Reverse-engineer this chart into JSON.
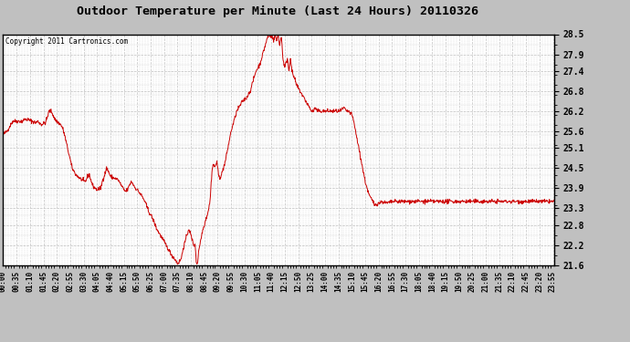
{
  "title": "Outdoor Temperature per Minute (Last 24 Hours) 20110326",
  "copyright": "Copyright 2011 Cartronics.com",
  "yticks": [
    21.6,
    22.2,
    22.8,
    23.3,
    23.9,
    24.5,
    25.1,
    25.6,
    26.2,
    26.8,
    27.4,
    27.9,
    28.5
  ],
  "ymin": 21.6,
  "ymax": 28.5,
  "line_color": "#cc0000",
  "fig_bg_color": "#c0c0c0",
  "plot_bg_color": "#ffffff",
  "grid_color": "#c0c0c0",
  "xtick_labels": [
    "00:00",
    "00:35",
    "01:10",
    "01:45",
    "02:20",
    "02:55",
    "03:30",
    "04:05",
    "04:40",
    "05:15",
    "05:50",
    "06:25",
    "07:00",
    "07:35",
    "08:10",
    "08:45",
    "09:20",
    "09:55",
    "10:30",
    "11:05",
    "11:40",
    "12:15",
    "12:50",
    "13:25",
    "14:00",
    "14:35",
    "15:10",
    "15:45",
    "16:20",
    "16:55",
    "17:30",
    "18:05",
    "18:40",
    "19:15",
    "19:50",
    "20:25",
    "21:00",
    "21:35",
    "22:10",
    "22:45",
    "23:20",
    "23:55"
  ],
  "keypoints": [
    [
      0,
      25.5
    ],
    [
      10,
      25.6
    ],
    [
      20,
      25.8
    ],
    [
      25,
      25.9
    ],
    [
      30,
      25.9
    ],
    [
      40,
      25.9
    ],
    [
      50,
      25.9
    ],
    [
      55,
      25.95
    ],
    [
      65,
      25.95
    ],
    [
      75,
      25.9
    ],
    [
      85,
      25.85
    ],
    [
      90,
      25.9
    ],
    [
      95,
      25.85
    ],
    [
      100,
      25.8
    ],
    [
      110,
      25.85
    ],
    [
      115,
      26.0
    ],
    [
      120,
      26.2
    ],
    [
      125,
      26.2
    ],
    [
      130,
      26.1
    ],
    [
      135,
      25.95
    ],
    [
      140,
      25.9
    ],
    [
      145,
      25.85
    ],
    [
      150,
      25.8
    ],
    [
      155,
      25.7
    ],
    [
      160,
      25.5
    ],
    [
      170,
      25.0
    ],
    [
      180,
      24.5
    ],
    [
      190,
      24.3
    ],
    [
      200,
      24.2
    ],
    [
      210,
      24.1
    ],
    [
      215,
      24.1
    ],
    [
      220,
      24.25
    ],
    [
      225,
      24.3
    ],
    [
      230,
      24.1
    ],
    [
      235,
      23.95
    ],
    [
      240,
      23.9
    ],
    [
      245,
      23.85
    ],
    [
      255,
      23.9
    ],
    [
      260,
      24.15
    ],
    [
      265,
      24.3
    ],
    [
      270,
      24.5
    ],
    [
      275,
      24.4
    ],
    [
      280,
      24.25
    ],
    [
      290,
      24.2
    ],
    [
      300,
      24.15
    ],
    [
      305,
      24.05
    ],
    [
      310,
      23.95
    ],
    [
      315,
      23.85
    ],
    [
      320,
      23.8
    ],
    [
      325,
      23.85
    ],
    [
      330,
      24.0
    ],
    [
      335,
      24.1
    ],
    [
      340,
      24.0
    ],
    [
      345,
      23.9
    ],
    [
      350,
      23.85
    ],
    [
      360,
      23.7
    ],
    [
      370,
      23.5
    ],
    [
      380,
      23.2
    ],
    [
      390,
      23.0
    ],
    [
      400,
      22.7
    ],
    [
      410,
      22.5
    ],
    [
      420,
      22.3
    ],
    [
      430,
      22.1
    ],
    [
      440,
      21.9
    ],
    [
      450,
      21.75
    ],
    [
      455,
      21.65
    ],
    [
      460,
      21.7
    ],
    [
      465,
      21.8
    ],
    [
      470,
      22.1
    ],
    [
      475,
      22.3
    ],
    [
      480,
      22.5
    ],
    [
      485,
      22.7
    ],
    [
      487,
      22.6
    ],
    [
      490,
      22.5
    ],
    [
      492,
      22.4
    ],
    [
      495,
      22.3
    ],
    [
      497,
      22.2
    ],
    [
      500,
      22.2
    ],
    [
      502,
      22.1
    ],
    [
      504,
      21.7
    ],
    [
      506,
      21.65
    ],
    [
      508,
      21.7
    ],
    [
      510,
      22.0
    ],
    [
      515,
      22.3
    ],
    [
      520,
      22.6
    ],
    [
      525,
      22.8
    ],
    [
      530,
      23.0
    ],
    [
      535,
      23.2
    ],
    [
      540,
      23.5
    ],
    [
      545,
      24.4
    ],
    [
      548,
      24.6
    ],
    [
      550,
      24.6
    ],
    [
      552,
      24.5
    ],
    [
      555,
      24.6
    ],
    [
      558,
      24.7
    ],
    [
      560,
      24.5
    ],
    [
      562,
      24.3
    ],
    [
      565,
      24.2
    ],
    [
      570,
      24.3
    ],
    [
      575,
      24.5
    ],
    [
      580,
      24.7
    ],
    [
      585,
      25.0
    ],
    [
      590,
      25.3
    ],
    [
      595,
      25.6
    ],
    [
      600,
      25.8
    ],
    [
      605,
      26.0
    ],
    [
      610,
      26.2
    ],
    [
      615,
      26.3
    ],
    [
      620,
      26.4
    ],
    [
      625,
      26.5
    ],
    [
      630,
      26.55
    ],
    [
      635,
      26.6
    ],
    [
      640,
      26.7
    ],
    [
      645,
      26.8
    ],
    [
      650,
      27.0
    ],
    [
      655,
      27.2
    ],
    [
      660,
      27.4
    ],
    [
      665,
      27.5
    ],
    [
      670,
      27.6
    ],
    [
      675,
      27.8
    ],
    [
      680,
      28.0
    ],
    [
      685,
      28.2
    ],
    [
      690,
      28.4
    ],
    [
      695,
      28.5
    ],
    [
      700,
      28.4
    ],
    [
      702,
      28.5
    ],
    [
      704,
      28.4
    ],
    [
      706,
      28.3
    ],
    [
      708,
      28.4
    ],
    [
      710,
      28.5
    ],
    [
      712,
      28.4
    ],
    [
      714,
      28.3
    ],
    [
      716,
      28.4
    ],
    [
      718,
      28.5
    ],
    [
      720,
      28.3
    ],
    [
      722,
      28.2
    ],
    [
      724,
      28.3
    ],
    [
      726,
      28.4
    ],
    [
      728,
      28.2
    ],
    [
      730,
      27.8
    ],
    [
      735,
      27.5
    ],
    [
      740,
      27.7
    ],
    [
      742,
      27.8
    ],
    [
      744,
      27.6
    ],
    [
      746,
      27.4
    ],
    [
      748,
      27.6
    ],
    [
      750,
      27.8
    ],
    [
      752,
      27.6
    ],
    [
      754,
      27.4
    ],
    [
      756,
      27.3
    ],
    [
      760,
      27.2
    ],
    [
      765,
      27.0
    ],
    [
      770,
      26.9
    ],
    [
      775,
      26.8
    ],
    [
      780,
      26.7
    ],
    [
      785,
      26.6
    ],
    [
      790,
      26.5
    ],
    [
      795,
      26.4
    ],
    [
      800,
      26.3
    ],
    [
      805,
      26.2
    ],
    [
      810,
      26.2
    ],
    [
      815,
      26.3
    ],
    [
      820,
      26.2
    ],
    [
      825,
      26.2
    ],
    [
      830,
      26.2
    ],
    [
      835,
      26.2
    ],
    [
      840,
      26.2
    ],
    [
      845,
      26.2
    ],
    [
      850,
      26.2
    ],
    [
      855,
      26.2
    ],
    [
      860,
      26.2
    ],
    [
      865,
      26.2
    ],
    [
      870,
      26.2
    ],
    [
      880,
      26.2
    ],
    [
      890,
      26.3
    ],
    [
      895,
      26.2
    ],
    [
      900,
      26.2
    ],
    [
      910,
      26.1
    ],
    [
      915,
      25.9
    ],
    [
      920,
      25.6
    ],
    [
      925,
      25.3
    ],
    [
      930,
      25.0
    ],
    [
      935,
      24.7
    ],
    [
      940,
      24.4
    ],
    [
      945,
      24.1
    ],
    [
      950,
      23.9
    ],
    [
      955,
      23.7
    ],
    [
      960,
      23.6
    ],
    [
      965,
      23.5
    ],
    [
      970,
      23.4
    ],
    [
      980,
      23.45
    ],
    [
      990,
      23.5
    ],
    [
      1000,
      23.45
    ],
    [
      1020,
      23.5
    ],
    [
      1050,
      23.5
    ],
    [
      1100,
      23.5
    ],
    [
      1150,
      23.5
    ],
    [
      1200,
      23.5
    ],
    [
      1250,
      23.5
    ],
    [
      1300,
      23.5
    ],
    [
      1350,
      23.5
    ],
    [
      1400,
      23.5
    ],
    [
      1439,
      23.5
    ]
  ]
}
